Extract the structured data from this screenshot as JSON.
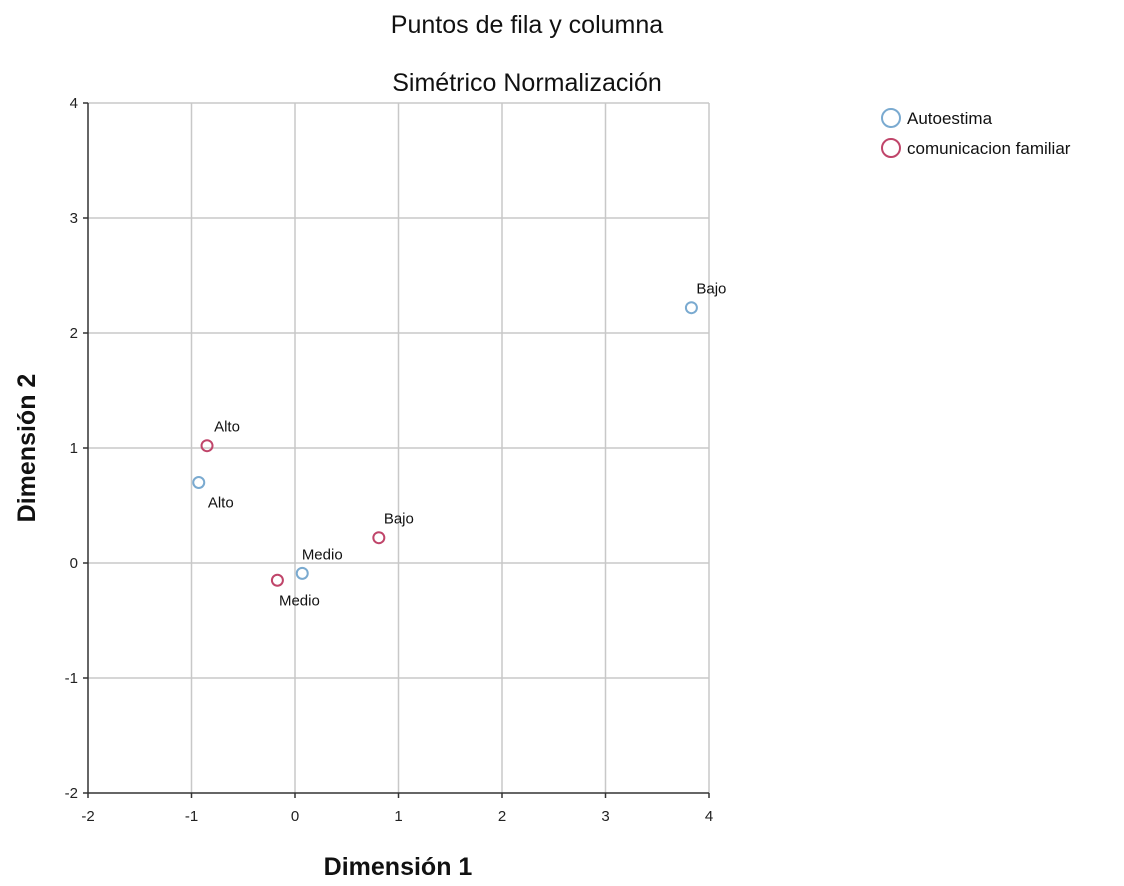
{
  "chart_data": {
    "type": "scatter",
    "title": "Puntos de fila y columna",
    "subtitle": "Simétrico Normalización",
    "xlabel": "Dimensión 1",
    "ylabel": "Dimensión 2",
    "xlim": [
      -2,
      4
    ],
    "ylim": [
      -2,
      4
    ],
    "xticks": [
      -2,
      -1,
      0,
      1,
      2,
      3,
      4
    ],
    "yticks": [
      -2,
      -1,
      0,
      1,
      2,
      3,
      4
    ],
    "grid": true,
    "legend_position": "top-right",
    "series": [
      {
        "name": "Autoestima",
        "color": "#7aaad0",
        "points": [
          {
            "label": "Bajo",
            "x": 3.83,
            "y": 2.22,
            "label_pos": "above"
          },
          {
            "label": "Alto",
            "x": -0.93,
            "y": 0.7,
            "label_pos": "below"
          },
          {
            "label": "Medio",
            "x": 0.07,
            "y": -0.09,
            "label_pos": "above"
          }
        ]
      },
      {
        "name": "comunicacion familiar",
        "color": "#c0456a",
        "points": [
          {
            "label": "Alto",
            "x": -0.85,
            "y": 1.02,
            "label_pos": "above"
          },
          {
            "label": "Bajo",
            "x": 0.81,
            "y": 0.22,
            "label_pos": "above"
          },
          {
            "label": "Medio",
            "x": -0.17,
            "y": -0.15,
            "label_pos": "below"
          }
        ]
      }
    ]
  }
}
